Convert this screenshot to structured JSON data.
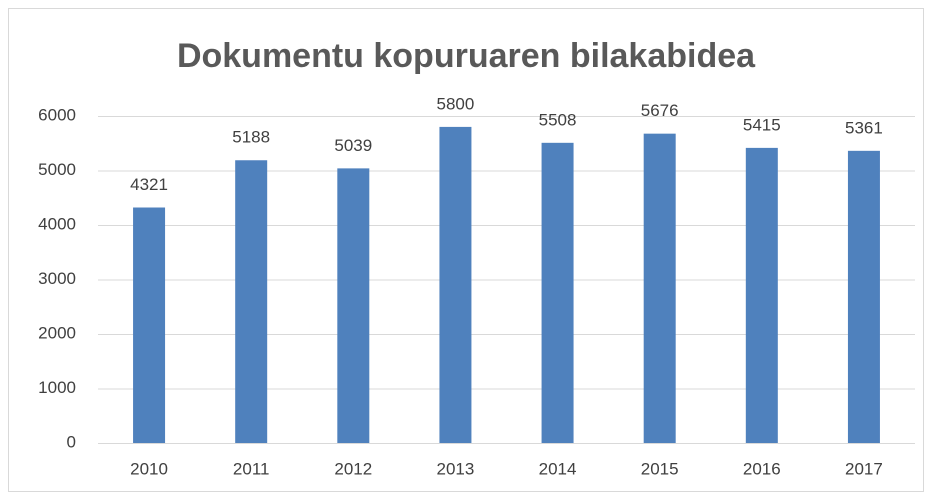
{
  "chart_data": {
    "type": "bar",
    "title": "Dokumentu kopuruaren bilakabidea",
    "categories": [
      "2010",
      "2011",
      "2012",
      "2013",
      "2014",
      "2015",
      "2016",
      "2017"
    ],
    "values": [
      4321,
      5188,
      5039,
      5800,
      5508,
      5676,
      5415,
      5361
    ],
    "color": "#4f81bd",
    "ylim": [
      0,
      6000
    ],
    "yticks": [
      0,
      1000,
      2000,
      3000,
      4000,
      5000,
      6000
    ],
    "grid": true
  }
}
